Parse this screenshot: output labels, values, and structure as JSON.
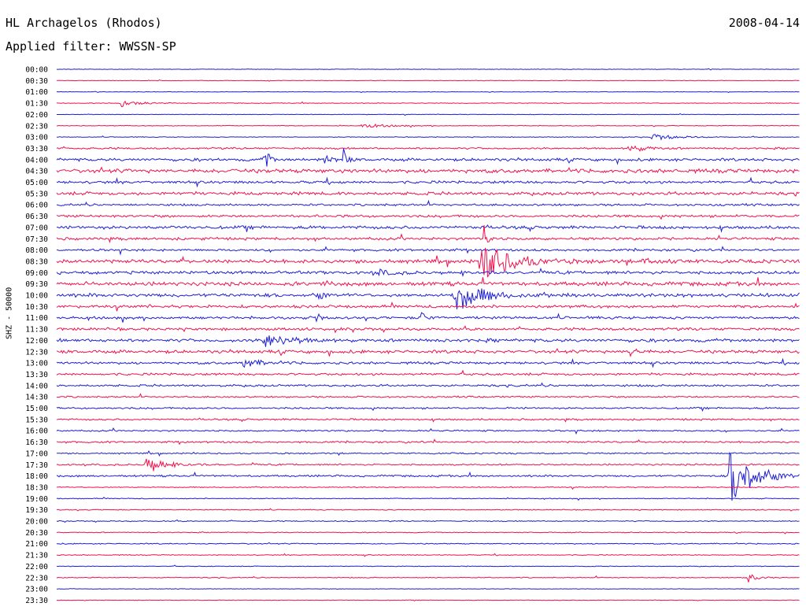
{
  "chart_data": {
    "type": "line",
    "title": "HL Archagelos (Rhodos)",
    "date": "2008-04-14",
    "subtitle": "Applied filter: WWSSN-SP",
    "ylabel": "SHZ - 50000",
    "xlabel": "",
    "grid": false,
    "colors": {
      "even": "#1f1fd6",
      "odd": "#f0114e"
    },
    "rows": [
      "00:00",
      "00:30",
      "01:00",
      "01:30",
      "02:00",
      "02:30",
      "03:00",
      "03:30",
      "04:00",
      "04:30",
      "05:00",
      "05:30",
      "06:00",
      "06:30",
      "07:00",
      "07:30",
      "08:00",
      "08:30",
      "09:00",
      "09:30",
      "10:00",
      "10:30",
      "11:00",
      "11:30",
      "12:00",
      "12:30",
      "13:00",
      "13:30",
      "14:00",
      "14:30",
      "15:00",
      "15:30",
      "16:00",
      "16:30",
      "17:00",
      "17:30",
      "18:00",
      "18:30",
      "19:00",
      "19:30",
      "20:00",
      "20:30",
      "21:00",
      "21:30",
      "22:00",
      "22:30",
      "23:00",
      "23:30"
    ],
    "noise_level": [
      0.3,
      0.3,
      0.3,
      0.4,
      0.3,
      0.4,
      0.4,
      1.0,
      1.6,
      2.2,
      1.5,
      1.8,
      1.2,
      1.4,
      1.8,
      1.5,
      1.3,
      2.0,
      1.8,
      2.2,
      2.0,
      1.6,
      1.5,
      1.5,
      1.8,
      1.8,
      1.4,
      1.3,
      1.2,
      0.9,
      1.0,
      1.0,
      0.9,
      1.0,
      0.8,
      0.9,
      1.1,
      0.6,
      0.5,
      0.5,
      0.6,
      0.5,
      0.6,
      0.5,
      0.4,
      0.5,
      0.3,
      0.3
    ],
    "events": [
      {
        "row": "01:30",
        "x": 0.085,
        "amp": 5,
        "dur": 0.02
      },
      {
        "row": "02:30",
        "x": 0.41,
        "amp": 3,
        "dur": 0.03
      },
      {
        "row": "03:00",
        "x": 0.8,
        "amp": 4,
        "dur": 0.03
      },
      {
        "row": "03:30",
        "x": 0.77,
        "amp": 5,
        "dur": 0.02
      },
      {
        "row": "04:00",
        "x": 0.28,
        "amp": 24,
        "dur": 0.004
      },
      {
        "row": "04:00",
        "x": 0.385,
        "amp": 18,
        "dur": 0.004
      },
      {
        "row": "04:00",
        "x": 0.36,
        "amp": 6,
        "dur": 0.01
      },
      {
        "row": "07:30",
        "x": 0.575,
        "amp": 18,
        "dur": 0.004
      },
      {
        "row": "08:30",
        "x": 0.57,
        "amp": 26,
        "dur": 0.035
      },
      {
        "row": "08:30",
        "x": 0.79,
        "amp": 5,
        "dur": 0.02
      },
      {
        "row": "09:00",
        "x": 0.43,
        "amp": 6,
        "dur": 0.01
      },
      {
        "row": "09:30",
        "x": 0.36,
        "amp": 7,
        "dur": 0.005
      },
      {
        "row": "10:00",
        "x": 0.535,
        "amp": 22,
        "dur": 0.03
      },
      {
        "row": "10:00",
        "x": 0.35,
        "amp": 6,
        "dur": 0.01
      },
      {
        "row": "11:00",
        "x": 0.49,
        "amp": 16,
        "dur": 0.004
      },
      {
        "row": "11:00",
        "x": 0.35,
        "amp": 12,
        "dur": 0.004
      },
      {
        "row": "12:00",
        "x": 0.28,
        "amp": 9,
        "dur": 0.03
      },
      {
        "row": "12:30",
        "x": 0.77,
        "amp": 6,
        "dur": 0.01
      },
      {
        "row": "13:00",
        "x": 0.25,
        "amp": 6,
        "dur": 0.02
      },
      {
        "row": "17:30",
        "x": 0.12,
        "amp": 12,
        "dur": 0.02
      },
      {
        "row": "18:00",
        "x": 0.905,
        "amp": 38,
        "dur": 0.03
      },
      {
        "row": "22:30",
        "x": 0.93,
        "amp": 7,
        "dur": 0.01
      }
    ]
  }
}
